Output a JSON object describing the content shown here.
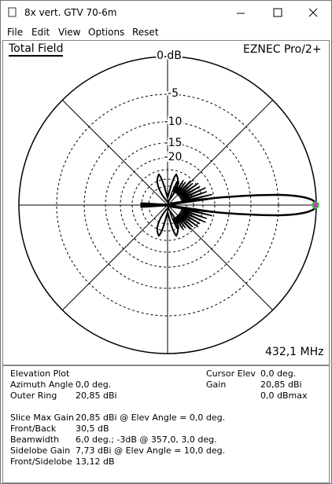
{
  "window": {
    "title": "8x vert. GTV 70-6m",
    "menu": [
      "File",
      "Edit",
      "View",
      "Options",
      "Reset"
    ]
  },
  "plot": {
    "title": "Total Field",
    "program": "EZNEC Pro/2+",
    "ring_labels": [
      "0 dB",
      "-5",
      "-10",
      "-15",
      "-20"
    ],
    "frequency": "432,1 MHz"
  },
  "info": {
    "plot_type": "Elevation Plot",
    "left": [
      {
        "label": "Azimuth Angle",
        "value": "0,0 deg."
      },
      {
        "label": "Outer Ring",
        "value": "20,85 dBi"
      }
    ],
    "right": [
      {
        "label": "Cursor Elev",
        "value": "0,0 deg."
      },
      {
        "label": "Gain",
        "value": "20,85 dBi"
      },
      {
        "value": "0,0 dBmax"
      }
    ],
    "summary": [
      {
        "label": "Slice Max Gain",
        "value": "20,85 dBi @ Elev Angle = 0,0 deg."
      },
      {
        "label": "Front/Back",
        "value": "30,5 dB"
      },
      {
        "label": "Beamwidth",
        "value": "6,0 deg.; -3dB @ 357,0, 3,0 deg."
      },
      {
        "label": "Sidelobe Gain",
        "value": "7,73 dBi @ Elev Angle = 10,0 deg."
      },
      {
        "label": "Front/Sidelobe",
        "value": "13,12 dB"
      }
    ]
  }
}
